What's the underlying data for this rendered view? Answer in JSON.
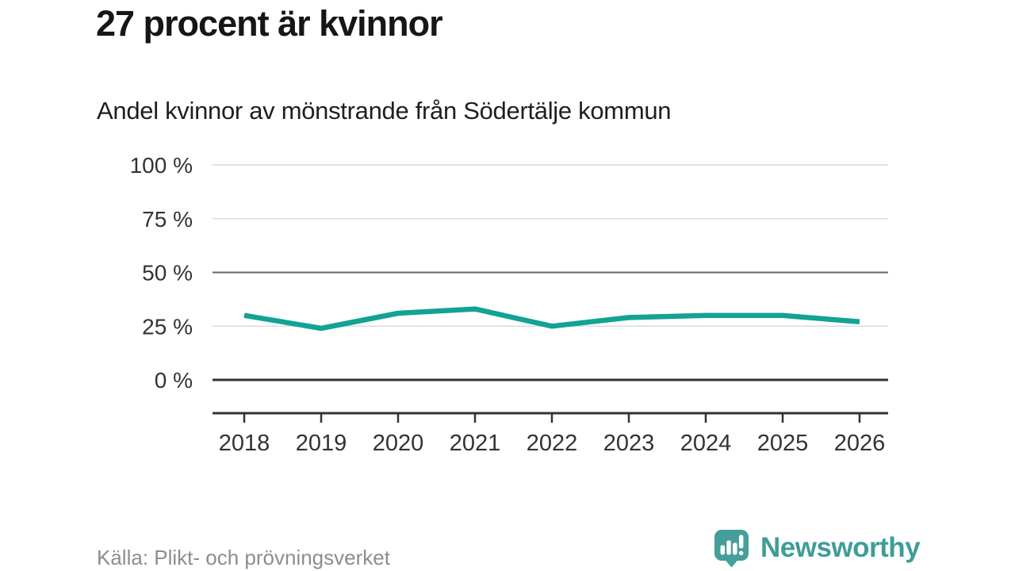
{
  "header": {
    "title": "27 procent är kvinnor",
    "subtitle": "Andel kvinnor av mönstrande från Södertälje kommun"
  },
  "footer": {
    "source": "Källa: Plikt- och prövningsverket",
    "brand_name": "Newsworthy",
    "brand_icon": "speech-bubble-bar-chart-icon"
  },
  "colors": {
    "line": "#12a296",
    "grid_light": "#dcdcdc",
    "grid_mid": "#666666",
    "grid_strong": "#333333",
    "axis": "#333333",
    "tick_text": "#333333",
    "brand": "#3f9d97"
  },
  "chart_data": {
    "type": "line",
    "title": "27 procent är kvinnor",
    "subtitle": "Andel kvinnor av mönstrande från Södertälje kommun",
    "xlabel": "",
    "ylabel": "",
    "categories": [
      "2018",
      "2019",
      "2020",
      "2021",
      "2022",
      "2023",
      "2024",
      "2025",
      "2026"
    ],
    "series": [
      {
        "name": "Andel kvinnor av mönstrande",
        "values": [
          30,
          24,
          31,
          33,
          25,
          29,
          30,
          30,
          27
        ]
      }
    ],
    "ylim": [
      0,
      100
    ],
    "grid": true,
    "legend": false,
    "y_ticks": [
      {
        "value": 100,
        "label": "100 %",
        "style": "light"
      },
      {
        "value": 75,
        "label": "75 %",
        "style": "light"
      },
      {
        "value": 50,
        "label": "50 %",
        "style": "mid"
      },
      {
        "value": 25,
        "label": "25 %",
        "style": "light"
      },
      {
        "value": 0,
        "label": "0 %",
        "style": "strong"
      }
    ]
  }
}
